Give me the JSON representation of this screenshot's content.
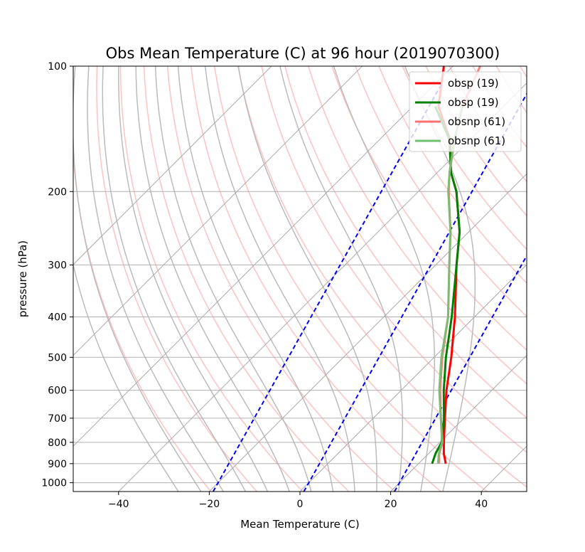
{
  "chart_data": {
    "type": "line",
    "subtype": "skew-t log-p",
    "title": "Obs Mean Temperature (C) at 96 hour (2019070300)",
    "xlabel": "Mean Temperature (C)",
    "ylabel": "pressure (hPa)",
    "xlim": [
      -50,
      50
    ],
    "ylim": [
      1050,
      100
    ],
    "y_scale": "log",
    "x_ticks": [
      -40,
      -20,
      0,
      20,
      40
    ],
    "y_ticks": [
      100,
      200,
      300,
      400,
      500,
      600,
      700,
      800,
      900,
      1000
    ],
    "grid": true,
    "legend_position": "top-right",
    "series": [
      {
        "name": "obsp (19)",
        "color": "#ff0000",
        "pressure": [
          900,
          850,
          800,
          700,
          600,
          500,
          400,
          300,
          250,
          200,
          180,
          150,
          125,
          100
        ],
        "temperature": [
          26.0,
          23.3,
          20.9,
          15.8,
          10.0,
          3.8,
          -4.3,
          -15.4,
          -22.0,
          -31.6,
          -37.0,
          -44.5,
          -54.3,
          -62.0
        ]
      },
      {
        "name": "obsp (19)",
        "color": "#008000",
        "pressure": [
          900,
          850,
          800,
          700,
          600,
          500,
          400,
          300,
          250,
          200,
          180,
          150,
          125
        ],
        "temperature": [
          23.0,
          21.5,
          20.4,
          15.6,
          9.4,
          2.6,
          -5.0,
          -15.4,
          -22.0,
          -31.6,
          -37.0,
          -44.6,
          -55.0
        ]
      },
      {
        "name": "obsnp (61)",
        "color": "#ff7070",
        "pressure": [
          900,
          850,
          800,
          700,
          600,
          500,
          400,
          300,
          250,
          200,
          180,
          150,
          125,
          100
        ],
        "temperature": [
          24.5,
          22.3,
          20.6,
          14.9,
          8.6,
          1.8,
          -5.8,
          -17.0,
          -24.0,
          -33.3,
          -37.3,
          -43.5,
          -49.0,
          -54.0
        ]
      },
      {
        "name": "obsnp (61)",
        "color": "#70c070",
        "pressure": [
          900,
          850,
          800,
          700,
          600,
          500,
          400,
          300,
          250,
          200,
          180,
          150,
          125
        ],
        "temperature": [
          24.3,
          22.2,
          20.5,
          14.9,
          8.4,
          1.6,
          -5.8,
          -17.0,
          -24.0,
          -33.4,
          -37.3,
          -43.5,
          -49.0
        ]
      }
    ],
    "reference_lines": {
      "isotherms": {
        "color": "#aaaaaa",
        "values": [
          -100,
          -80,
          -60,
          -40,
          -20,
          0,
          20,
          40,
          60,
          80
        ]
      },
      "dry_adiabats": {
        "color": "#ffbbbb",
        "theta_k": [
          250,
          260,
          270,
          280,
          290,
          300,
          310,
          320,
          330,
          340,
          350,
          360,
          370,
          380,
          390,
          400,
          410,
          420,
          430,
          440,
          450,
          460,
          470
        ]
      },
      "moist_adiabats": {
        "color": "#bbbbbb",
        "start_temps_c": [
          -30,
          -25,
          -20,
          -15,
          -10,
          -5,
          0,
          5,
          10,
          15,
          20,
          25,
          30
        ]
      },
      "mixing_ratio": {
        "color": "#0000ff",
        "style": "dashed",
        "t_at_1000hpa": [
          -20,
          0,
          20
        ]
      }
    }
  }
}
